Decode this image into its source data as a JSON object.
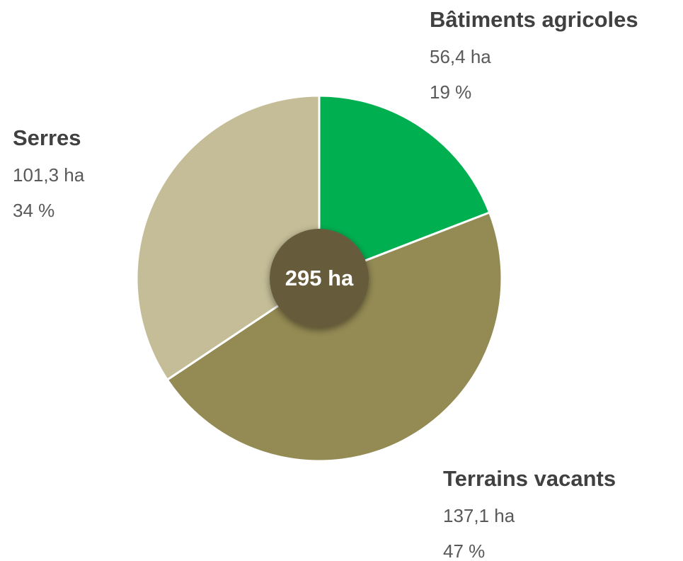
{
  "chart_data": {
    "type": "pie",
    "categories": [
      "Bâtiments agricoles",
      "Terrains vacants",
      "Serres"
    ],
    "values": [
      56.4,
      137.1,
      101.3
    ],
    "value_labels": [
      "56,4 ha",
      "137,1 ha",
      "101,3 ha"
    ],
    "percentages": [
      19,
      47,
      34
    ],
    "percentage_labels": [
      "19 %",
      "47 %",
      "34 %"
    ],
    "colors": [
      "#00b050",
      "#948a54",
      "#c4bd97"
    ],
    "center_label": "295 ha"
  }
}
